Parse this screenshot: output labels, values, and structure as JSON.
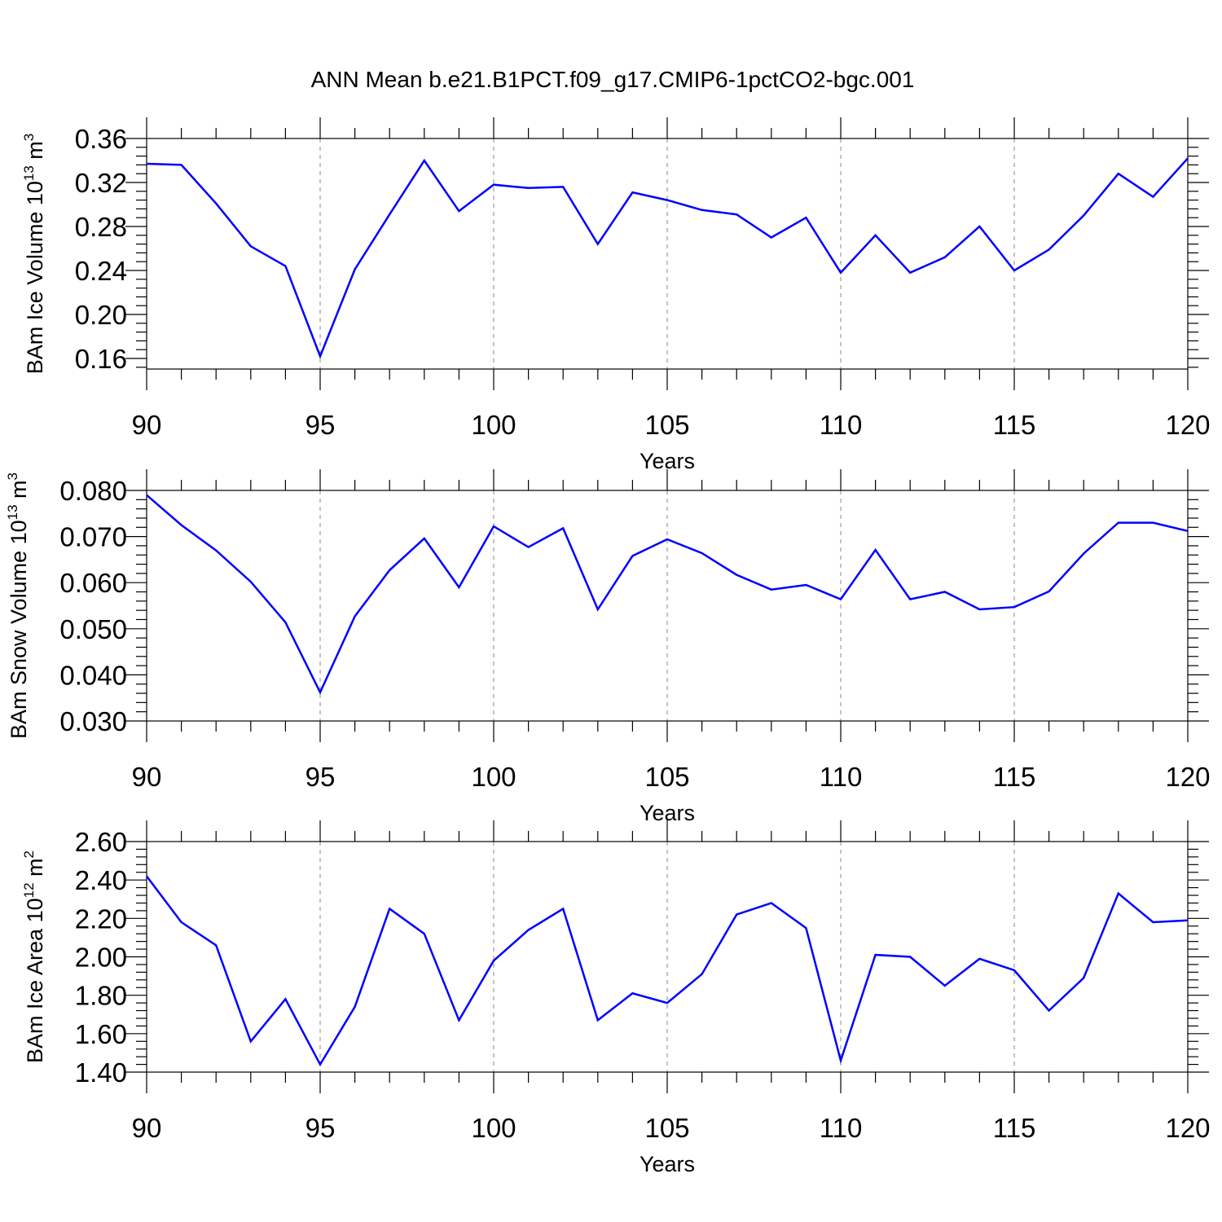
{
  "title": "ANN Mean b.e21.B1PCT.f09_g17.CMIP6-1pctCO2-bgc.001",
  "chart_data": [
    {
      "type": "line",
      "xlabel": "Years",
      "ylabel": "BAm Ice Volume 10",
      "ylabel_exp": "13",
      "ylabel_unit": " m",
      "ylabel_unit_exp": "3",
      "xlim": [
        90,
        120
      ],
      "ylim": [
        0.15,
        0.36
      ],
      "xticks": [
        90,
        95,
        100,
        105,
        110,
        115,
        120
      ],
      "xtick_labels": [
        "90",
        "95",
        "100",
        "105",
        "110",
        "115",
        "120"
      ],
      "yticks": [
        0.16,
        0.2,
        0.24,
        0.28,
        0.32,
        0.36
      ],
      "ytick_labels": [
        "0.16",
        "0.20",
        "0.24",
        "0.28",
        "0.32",
        "0.36"
      ],
      "minor_y_step": 0.008,
      "grid_x": true,
      "color": "#0000ff",
      "x": [
        90,
        91,
        92,
        93,
        94,
        95,
        96,
        97,
        98,
        99,
        100,
        101,
        102,
        103,
        104,
        105,
        106,
        107,
        108,
        109,
        110,
        111,
        112,
        113,
        114,
        115,
        116,
        117,
        118,
        119,
        120
      ],
      "y": [
        0.337,
        0.336,
        0.301,
        0.262,
        0.244,
        0.162,
        0.241,
        0.291,
        0.34,
        0.294,
        0.318,
        0.315,
        0.316,
        0.264,
        0.311,
        0.304,
        0.295,
        0.291,
        0.27,
        0.288,
        0.238,
        0.272,
        0.238,
        0.252,
        0.28,
        0.24,
        0.259,
        0.29,
        0.328,
        0.307,
        0.342
      ]
    },
    {
      "type": "line",
      "xlabel": "Years",
      "ylabel": "BAm Snow Volume 10",
      "ylabel_exp": "13",
      "ylabel_unit": " m",
      "ylabel_unit_exp": "3",
      "xlim": [
        90,
        120
      ],
      "ylim": [
        0.03,
        0.08
      ],
      "xticks": [
        90,
        95,
        100,
        105,
        110,
        115,
        120
      ],
      "xtick_labels": [
        "90",
        "95",
        "100",
        "105",
        "110",
        "115",
        "120"
      ],
      "yticks": [
        0.03,
        0.04,
        0.05,
        0.06,
        0.07,
        0.08
      ],
      "ytick_labels": [
        "0.030",
        "0.040",
        "0.050",
        "0.060",
        "0.070",
        "0.080"
      ],
      "minor_y_step": 0.002,
      "grid_x": true,
      "color": "#0000ff",
      "x": [
        90,
        91,
        92,
        93,
        94,
        95,
        96,
        97,
        98,
        99,
        100,
        101,
        102,
        103,
        104,
        105,
        106,
        107,
        108,
        109,
        110,
        111,
        112,
        113,
        114,
        115,
        116,
        117,
        118,
        119,
        120
      ],
      "y": [
        0.079,
        0.0725,
        0.067,
        0.0602,
        0.0514,
        0.0362,
        0.0527,
        0.0627,
        0.0696,
        0.059,
        0.0722,
        0.0677,
        0.0718,
        0.0542,
        0.0658,
        0.0694,
        0.0664,
        0.0617,
        0.0585,
        0.0595,
        0.0564,
        0.0671,
        0.0564,
        0.058,
        0.0542,
        0.0547,
        0.0581,
        0.0663,
        0.073,
        0.073,
        0.0712
      ]
    },
    {
      "type": "line",
      "xlabel": "Years",
      "ylabel": "BAm Ice Area 10",
      "ylabel_exp": "12",
      "ylabel_unit": " m",
      "ylabel_unit_exp": "2",
      "xlim": [
        90,
        120
      ],
      "ylim": [
        1.4,
        2.6
      ],
      "xticks": [
        90,
        95,
        100,
        105,
        110,
        115,
        120
      ],
      "xtick_labels": [
        "90",
        "95",
        "100",
        "105",
        "110",
        "115",
        "120"
      ],
      "yticks": [
        1.4,
        1.6,
        1.8,
        2.0,
        2.2,
        2.4,
        2.6
      ],
      "ytick_labels": [
        "1.40",
        "1.60",
        "1.80",
        "2.00",
        "2.20",
        "2.40",
        "2.60"
      ],
      "minor_y_step": 0.04,
      "grid_x": true,
      "color": "#0000ff",
      "x": [
        90,
        91,
        92,
        93,
        94,
        95,
        96,
        97,
        98,
        99,
        100,
        101,
        102,
        103,
        104,
        105,
        106,
        107,
        108,
        109,
        110,
        111,
        112,
        113,
        114,
        115,
        116,
        117,
        118,
        119,
        120
      ],
      "y": [
        2.42,
        2.18,
        2.06,
        1.56,
        1.78,
        1.44,
        1.74,
        2.25,
        2.12,
        1.67,
        1.98,
        2.14,
        2.25,
        1.67,
        1.81,
        1.76,
        1.91,
        2.22,
        2.28,
        2.15,
        1.46,
        2.01,
        2.0,
        1.85,
        1.99,
        1.93,
        1.72,
        1.89,
        2.33,
        2.18,
        2.19
      ]
    }
  ]
}
